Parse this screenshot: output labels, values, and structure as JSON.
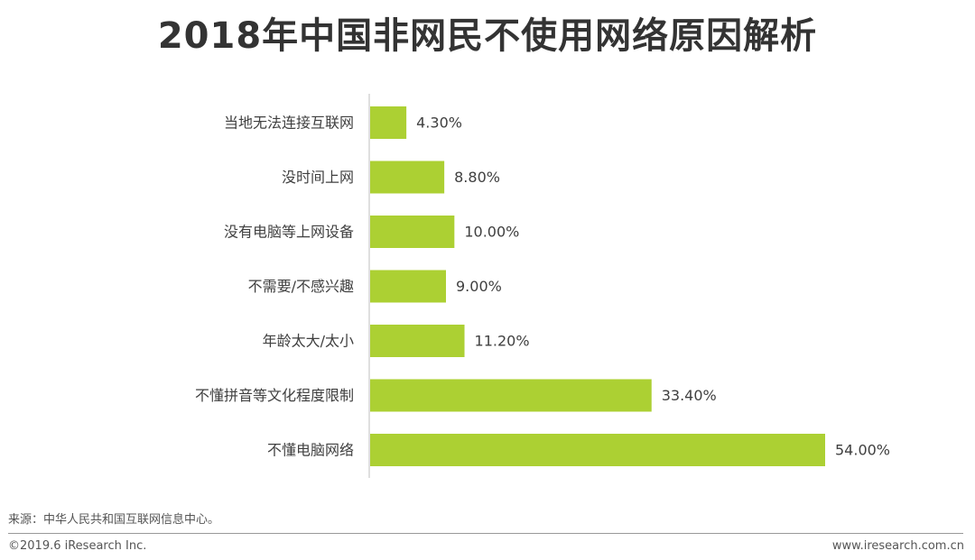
{
  "title": "2018年中国非网民不使用网络原因解析",
  "chart_data": {
    "type": "bar",
    "orientation": "horizontal",
    "categories": [
      "当地无法连接互联网",
      "没时间上网",
      "没有电脑等上网设备",
      "不需要/不感兴趣",
      "年龄太大/太小",
      "不懂拼音等文化程度限制",
      "不懂电脑网络"
    ],
    "values": [
      4.3,
      8.8,
      10.0,
      9.0,
      11.2,
      33.4,
      54.0
    ],
    "value_labels": [
      "4.30%",
      "8.80%",
      "10.00%",
      "9.00%",
      "11.20%",
      "33.40%",
      "54.00%"
    ],
    "xlim": [
      0,
      54.0
    ],
    "bar_color": "#acd033",
    "axis_color": "#bfbfbf",
    "grid": false,
    "legend": "none"
  },
  "footer": {
    "source": "来源：中华人民共和国互联网信息中心。",
    "copyright": "©2019.6 iResearch Inc.",
    "website": "www.iresearch.com.cn"
  }
}
